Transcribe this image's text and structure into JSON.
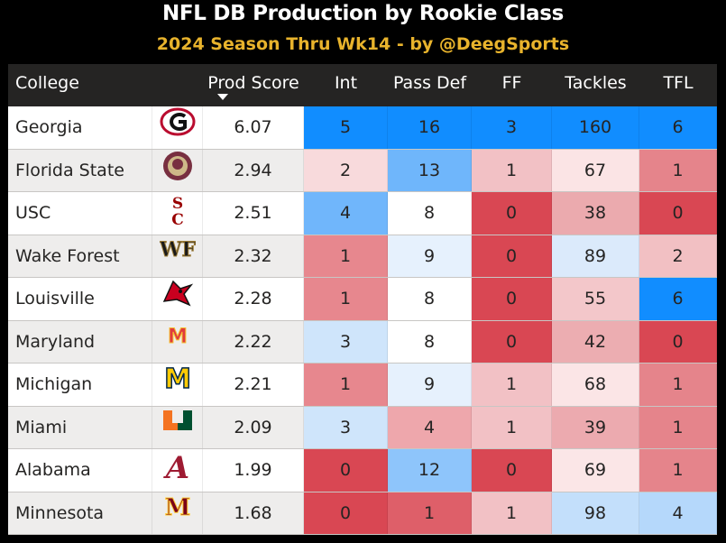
{
  "title": "NFL DB Production by Rookie Class",
  "subtitle": "2024 Season Thru Wk14 - by @DeegSports",
  "chart_data": {
    "type": "table",
    "columns": [
      "College",
      "",
      "Prod Score",
      "Int",
      "Pass Def",
      "FF",
      "Tackles",
      "TFL"
    ],
    "sorted_by": "Prod Score",
    "sort_direction": "descending",
    "rows": [
      {
        "college": "Georgia",
        "logo": "georgia-g-logo",
        "prod_score": "6.07",
        "int": "5",
        "pass_def": "16",
        "ff": "3",
        "tackles": "160",
        "tfl": "6"
      },
      {
        "college": "Florida State",
        "logo": "florida-state-seminole-logo",
        "prod_score": "2.94",
        "int": "2",
        "pass_def": "13",
        "ff": "1",
        "tackles": "67",
        "tfl": "1"
      },
      {
        "college": "USC",
        "logo": "usc-sc-logo",
        "prod_score": "2.51",
        "int": "4",
        "pass_def": "8",
        "ff": "0",
        "tackles": "38",
        "tfl": "0"
      },
      {
        "college": "Wake Forest",
        "logo": "wake-forest-wf-logo",
        "prod_score": "2.32",
        "int": "1",
        "pass_def": "9",
        "ff": "0",
        "tackles": "89",
        "tfl": "2"
      },
      {
        "college": "Louisville",
        "logo": "louisville-cardinal-logo",
        "prod_score": "2.28",
        "int": "1",
        "pass_def": "8",
        "ff": "0",
        "tackles": "55",
        "tfl": "6"
      },
      {
        "college": "Maryland",
        "logo": "maryland-m-logo",
        "prod_score": "2.22",
        "int": "3",
        "pass_def": "8",
        "ff": "0",
        "tackles": "42",
        "tfl": "0"
      },
      {
        "college": "Michigan",
        "logo": "michigan-m-logo",
        "prod_score": "2.21",
        "int": "1",
        "pass_def": "9",
        "ff": "1",
        "tackles": "68",
        "tfl": "1"
      },
      {
        "college": "Miami",
        "logo": "miami-u-logo",
        "prod_score": "2.09",
        "int": "3",
        "pass_def": "4",
        "ff": "1",
        "tackles": "39",
        "tfl": "1"
      },
      {
        "college": "Alabama",
        "logo": "alabama-a-logo",
        "prod_score": "1.99",
        "int": "0",
        "pass_def": "12",
        "ff": "0",
        "tackles": "69",
        "tfl": "1"
      },
      {
        "college": "Minnesota",
        "logo": "minnesota-m-logo",
        "prod_score": "1.68",
        "int": "0",
        "pass_def": "1",
        "ff": "1",
        "tackles": "98",
        "tfl": "4"
      }
    ],
    "cell_colors": [
      {
        "int": "#118dff",
        "pass_def": "#118dff",
        "ff": "#118dff",
        "tackles": "#118dff",
        "tfl": "#118dff"
      },
      {
        "int": "#f8dadc",
        "pass_def": "#6fb6fb",
        "ff": "#f2c1c5",
        "tackles": "#fbe4e5",
        "tfl": "#e5848b"
      },
      {
        "int": "#70b6fb",
        "pass_def": "#ffffff",
        "ff": "#d94753",
        "tackles": "#ebaaae",
        "tfl": "#d94753"
      },
      {
        "int": "#e7878e",
        "pass_def": "#e6f1fd",
        "ff": "#d94753",
        "tackles": "#dbeafb",
        "tfl": "#f2c0c3"
      },
      {
        "int": "#e7878e",
        "pass_def": "#ffffff",
        "ff": "#d94753",
        "tackles": "#f3c7ca",
        "tfl": "#118dff"
      },
      {
        "int": "#cfe5fb",
        "pass_def": "#ffffff",
        "ff": "#d94753",
        "tackles": "#ecadb1",
        "tfl": "#d94753"
      },
      {
        "int": "#e7878e",
        "pass_def": "#e6f1fd",
        "ff": "#f2c1c5",
        "tackles": "#fbe5e6",
        "tfl": "#e5848b"
      },
      {
        "int": "#cfe5fb",
        "pass_def": "#eea7ac",
        "ff": "#f2c1c5",
        "tackles": "#ecaaaf",
        "tfl": "#e5848b"
      },
      {
        "int": "#d94753",
        "pass_def": "#8ec5fb",
        "ff": "#d94753",
        "tackles": "#fbe6e7",
        "tfl": "#e5848b"
      },
      {
        "int": "#d94753",
        "pass_def": "#de5f69",
        "ff": "#f2c1c5",
        "tackles": "#c3dffb",
        "tfl": "#b5d8fb"
      }
    ],
    "row_background_even": "#ffffff",
    "row_background_odd": "#eeedec"
  }
}
